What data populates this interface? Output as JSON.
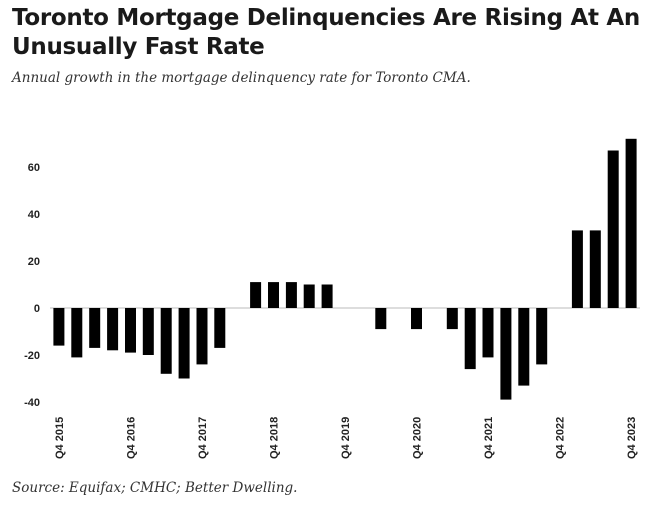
{
  "title": "Toronto Mortgage Delinquencies Are Rising At An Unusually Fast Rate",
  "subtitle": "Annual growth in the mortgage delinquency rate for Toronto CMA.",
  "source": "Source: Equifax; CMHC; Better Dwelling.",
  "colors": {
    "bar": "#000000",
    "axis": "#bbbbbb"
  },
  "chart_data": {
    "type": "bar",
    "categories": [
      "Q4 2015",
      "Q1 2016",
      "Q2 2016",
      "Q3 2016",
      "Q4 2016",
      "Q1 2017",
      "Q2 2017",
      "Q3 2017",
      "Q4 2017",
      "Q1 2018",
      "Q2 2018",
      "Q3 2018",
      "Q4 2018",
      "Q1 2019",
      "Q2 2019",
      "Q3 2019",
      "Q4 2019",
      "Q1 2020",
      "Q2 2020",
      "Q3 2020",
      "Q4 2020",
      "Q1 2021",
      "Q2 2021",
      "Q3 2021",
      "Q4 2021",
      "Q1 2022",
      "Q2 2022",
      "Q3 2022",
      "Q4 2022",
      "Q1 2023",
      "Q2 2023",
      "Q3 2023",
      "Q4 2023"
    ],
    "values": [
      -16,
      -21,
      -17,
      -18,
      -19,
      -20,
      -28,
      -30,
      -24,
      -17,
      0,
      11,
      11,
      11,
      10,
      10,
      0,
      0,
      -9,
      0,
      -9,
      0,
      -9,
      -26,
      -21,
      -39,
      -33,
      -24,
      0,
      33,
      33,
      67,
      72
    ],
    "x_tick_labels": [
      "Q4 2015",
      "Q4 2016",
      "Q4 2017",
      "Q4 2018",
      "Q4 2019",
      "Q4 2020",
      "Q4 2021",
      "Q4 2022",
      "Q4 2023"
    ],
    "y_ticks": [
      -40,
      -20,
      0,
      20,
      40,
      60
    ],
    "ylim": [
      -40,
      75
    ],
    "xlabel": "",
    "ylabel": "",
    "grid": false
  }
}
